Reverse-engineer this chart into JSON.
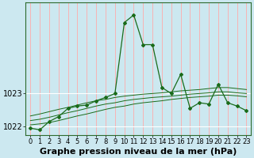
{
  "title": "Graphe pression niveau de la mer (hPa)",
  "bg_color": "#cce8f0",
  "grid_color_h": "#ffffff",
  "grid_color_v": "#ffaaaa",
  "line_color": "#1a6b1a",
  "hours": [
    0,
    1,
    2,
    3,
    4,
    5,
    6,
    7,
    8,
    9,
    10,
    11,
    12,
    13,
    14,
    15,
    16,
    17,
    18,
    19,
    20,
    21,
    22,
    23
  ],
  "pressure_main": [
    1021.95,
    1021.9,
    1022.15,
    1022.3,
    1022.55,
    1022.62,
    1022.65,
    1022.78,
    1022.88,
    1023.0,
    1025.15,
    1025.38,
    1024.48,
    1024.48,
    1023.18,
    1023.0,
    1023.58,
    1022.55,
    1022.72,
    1022.68,
    1023.28,
    1022.72,
    1022.62,
    1022.48
  ],
  "pressure_line1": [
    1022.05,
    1022.08,
    1022.12,
    1022.18,
    1022.25,
    1022.32,
    1022.38,
    1022.45,
    1022.52,
    1022.58,
    1022.62,
    1022.68,
    1022.72,
    1022.75,
    1022.78,
    1022.82,
    1022.85,
    1022.88,
    1022.9,
    1022.92,
    1022.95,
    1022.95,
    1022.93,
    1022.9
  ],
  "pressure_line2": [
    1022.18,
    1022.22,
    1022.28,
    1022.35,
    1022.42,
    1022.48,
    1022.55,
    1022.62,
    1022.68,
    1022.72,
    1022.78,
    1022.82,
    1022.85,
    1022.88,
    1022.9,
    1022.92,
    1022.95,
    1022.98,
    1023.0,
    1023.02,
    1023.05,
    1023.05,
    1023.02,
    1023.0
  ],
  "pressure_line3": [
    1022.32,
    1022.38,
    1022.45,
    1022.52,
    1022.58,
    1022.65,
    1022.72,
    1022.78,
    1022.82,
    1022.88,
    1022.92,
    1022.95,
    1022.98,
    1023.0,
    1023.02,
    1023.05,
    1023.08,
    1023.1,
    1023.12,
    1023.15,
    1023.18,
    1023.18,
    1023.15,
    1023.12
  ],
  "ylim_min": 1021.75,
  "ylim_max": 1025.75,
  "yticks": [
    1022,
    1023
  ],
  "title_fontsize": 8,
  "tick_fontsize": 6,
  "figw": 3.2,
  "figh": 2.0,
  "dpi": 100
}
